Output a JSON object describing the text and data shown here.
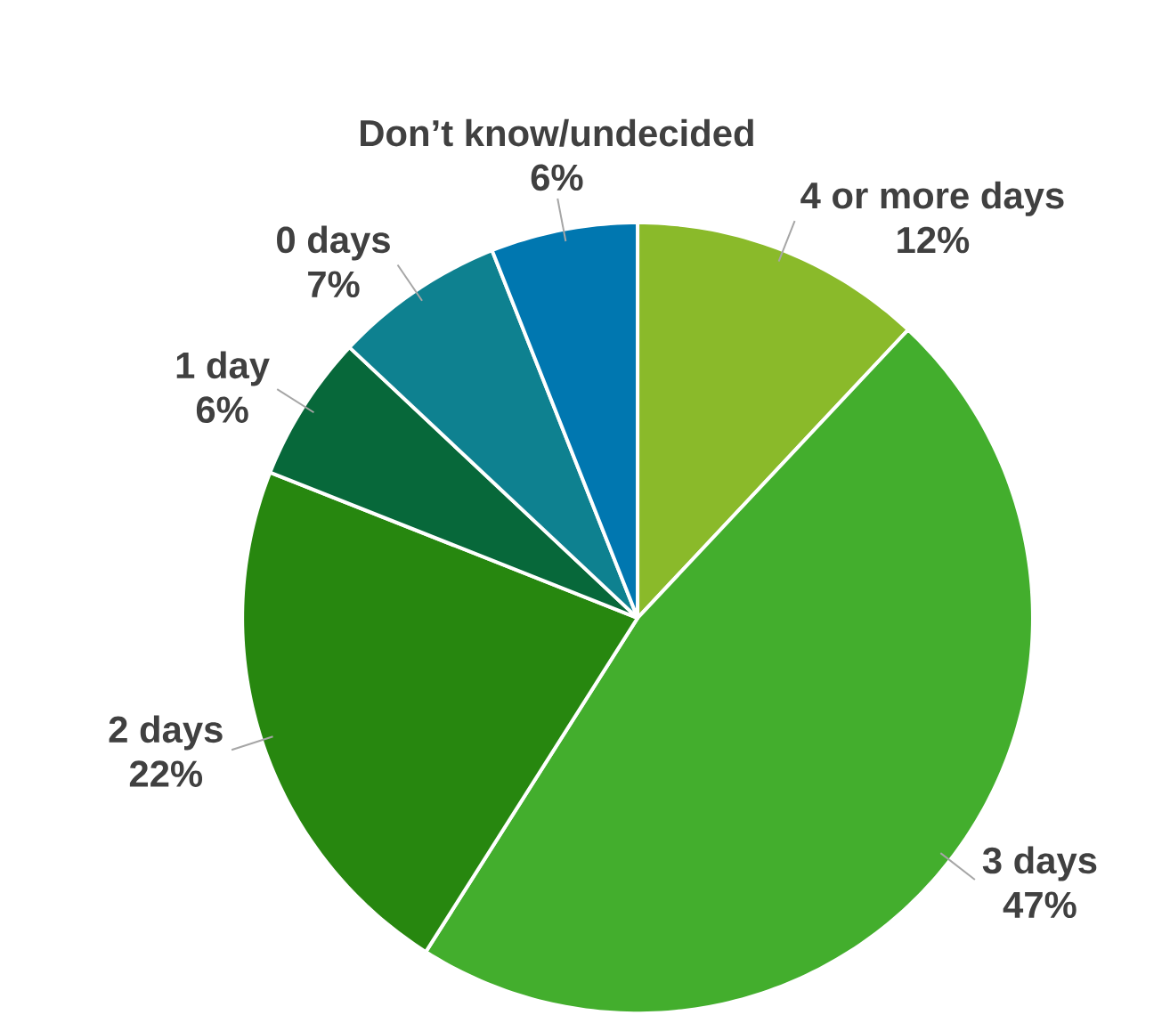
{
  "chart_data": {
    "type": "pie",
    "categories": [
      "4 or more days",
      "3 days",
      "2 days",
      "1 day",
      "0 days",
      "Don’t know/undecided"
    ],
    "values": [
      12,
      47,
      22,
      6,
      7,
      6
    ],
    "colors": [
      "#8aba2a",
      "#43ae2d",
      "#27870f",
      "#07683a",
      "#0e8190",
      "#0077b0"
    ],
    "data_labels": true,
    "value_labels": [
      "12%",
      "47%",
      "22%",
      "6%",
      "7%",
      "6%"
    ]
  }
}
